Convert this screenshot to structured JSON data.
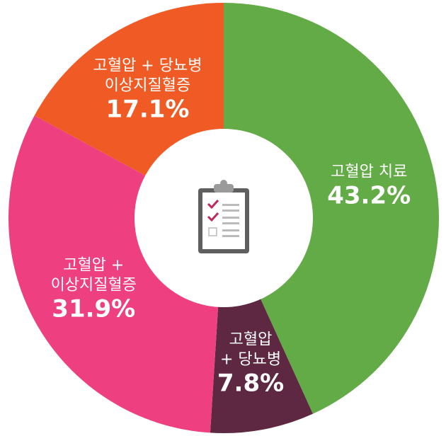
{
  "chart_data": {
    "type": "donut",
    "categories": [
      "고혈압 치료",
      "고혈압\n+ 당뇨병",
      "고혈압 +\n이상지질혈증",
      "고혈압 + 당뇨병\n이상지질혈증"
    ],
    "values": [
      43.2,
      7.8,
      31.9,
      17.1
    ],
    "value_labels": [
      "43.2%",
      "7.8%",
      "31.9%",
      "17.1%"
    ],
    "colors": [
      "#62ab46",
      "#5e2843",
      "#ee4081",
      "#f05a24"
    ]
  }
}
